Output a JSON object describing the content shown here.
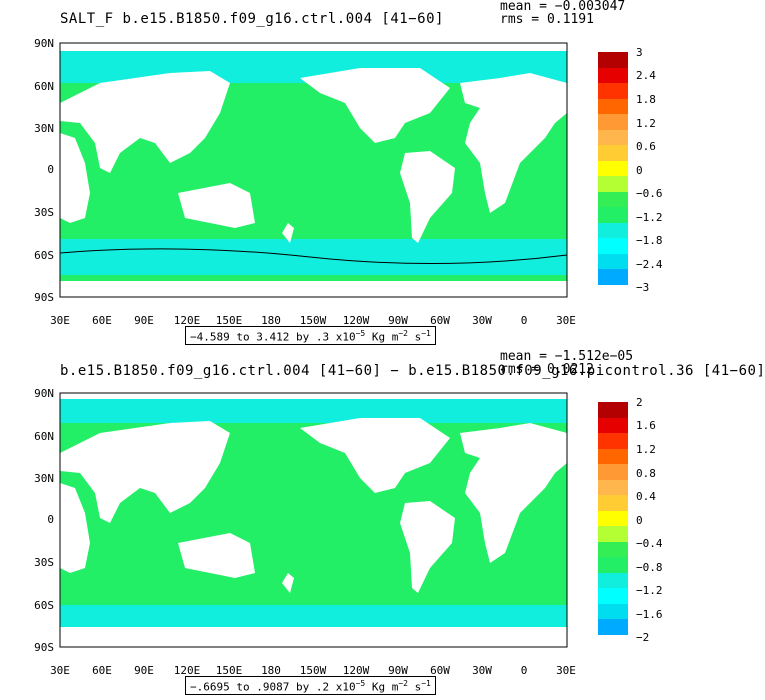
{
  "colors": {
    "ocean_main": "#22ee66",
    "ocean_light": "#11eedd",
    "ocean_mid": "#00ddee",
    "land": "#ffffff",
    "frame": "#000000"
  },
  "lat_labels": [
    "90N",
    "60N",
    "30N",
    "0",
    "30S",
    "60S",
    "90S"
  ],
  "lon_labels": [
    "30E",
    "60E",
    "90E",
    "120E",
    "150E",
    "180",
    "150W",
    "120W",
    "90W",
    "60W",
    "30W",
    "0",
    "30E"
  ],
  "panels": [
    {
      "title": "SALT_F  b.e15.B1850.f09_g16.ctrl.004  [41−60]",
      "mean": "mean = −0.003047",
      "rms": "rms = 0.1191",
      "range_text": "−4.589 to 3.412 by .3 x10",
      "range_exp": "−5",
      "units_a": "Kg m",
      "units_exp1": "−2",
      "units_b": "s",
      "units_exp2": "−1",
      "colorbar": {
        "labels": [
          "3",
          "2.4",
          "1.8",
          "1.2",
          "0.6",
          "0",
          "−0.6",
          "−1.2",
          "−1.8",
          "−2.4",
          "−3"
        ],
        "colors": [
          "#b30000",
          "#e60000",
          "#ff3300",
          "#ff6600",
          "#ff9933",
          "#ffb74d",
          "#ffcc33",
          "#ffff00",
          "#b3ff33",
          "#33ee55",
          "#22ee66",
          "#11eedd",
          "#00ffff",
          "#00ddee",
          "#00aaff",
          "#0077ff",
          "#0044ff",
          "#0000dd",
          "#8800cc",
          "#cc00cc",
          "#ff44ff",
          "#cccccc",
          "#999999",
          "#666666"
        ]
      }
    },
    {
      "title": "b.e15.B1850.f09_g16.ctrl.004  [41−60]  −  b.e15.B1850.f09_g16.picontrol.36  [41−60]",
      "mean": "mean = −1.512e−05",
      "rms": "rms = 0.0212",
      "range_text": "−.6695 to .9087 by .2 x10",
      "range_exp": "−5",
      "units_a": "Kg m",
      "units_exp1": "−2",
      "units_b": "s",
      "units_exp2": "−1",
      "colorbar": {
        "labels": [
          "2",
          "1.6",
          "1.2",
          "0.8",
          "0.4",
          "0",
          "−0.4",
          "−0.8",
          "−1.2",
          "−1.6",
          "−2"
        ],
        "colors": [
          "#b30000",
          "#e60000",
          "#ff3300",
          "#ff6600",
          "#ff9933",
          "#ffb74d",
          "#ffcc33",
          "#ffff00",
          "#b3ff33",
          "#33ee55",
          "#22ee66",
          "#11eedd",
          "#00ffff",
          "#00ddee",
          "#00aaff",
          "#0077ff",
          "#0044ff",
          "#0000dd",
          "#8800cc",
          "#cc00cc",
          "#ff44ff",
          "#cccccc",
          "#999999",
          "#666666"
        ]
      }
    }
  ]
}
